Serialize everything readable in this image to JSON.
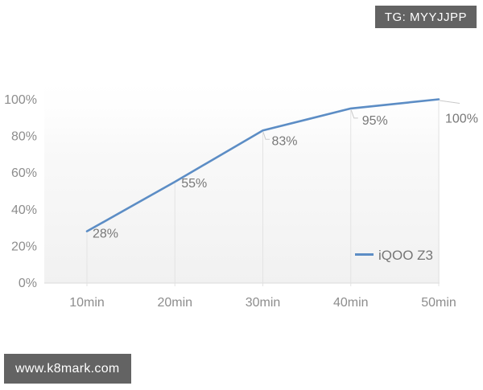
{
  "watermarks": {
    "top_right": "TG: MYYJJPP",
    "bottom_left": "www.k8mark.com",
    "badge_bg": "#636363",
    "badge_text_color": "#ffffff"
  },
  "chart_data": {
    "type": "line",
    "categories": [
      "10min",
      "20min",
      "30min",
      "40min",
      "50min"
    ],
    "series": [
      {
        "name": "iQOO Z3",
        "values": [
          28,
          55,
          83,
          95,
          100
        ],
        "point_labels": [
          "28%",
          "55%",
          "83%",
          "95%",
          "100%"
        ],
        "color": "#5c8dc5"
      }
    ],
    "ylim": [
      0,
      100
    ],
    "y_tick_values": [
      0,
      20,
      40,
      60,
      80,
      100
    ],
    "y_tick_labels": [
      "0%",
      "20%",
      "40%",
      "60%",
      "80%",
      "100%"
    ],
    "grid": "off",
    "drop_lines": true,
    "legend_position": "right-middle",
    "colors": {
      "axis_text": "#8d8d8d",
      "point_label_text": "#787878",
      "legend_text": "#767676",
      "axis_line": "#e0e0e0",
      "drop_line": "#e3e3e3",
      "connector_line": "#c9c9c9",
      "plot_bg_bottom": "#f1f1f1"
    }
  }
}
